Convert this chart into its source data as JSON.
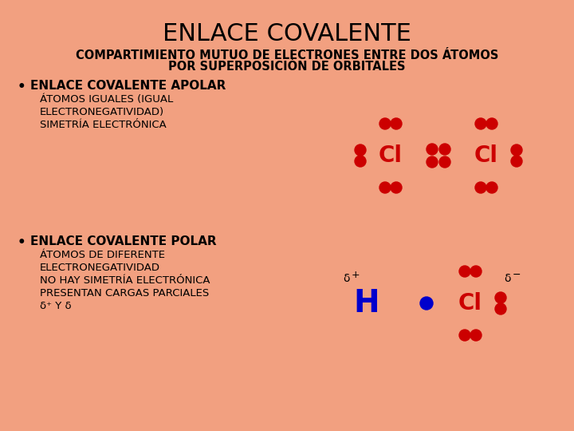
{
  "bg_color": "#F2A080",
  "title": "ENLACE COVALENTE",
  "title_fontsize": 22,
  "subtitle1": "COMPARTIMIENTO MUTUO DE ELECTRONES ENTRE DOS ÁTOMOS",
  "subtitle2": "POR SUPERPOSICIÓN DE ORBITALES",
  "subtitle_fontsize": 10.5,
  "bullet1_header": "ENLACE COVALENTE APOLAR",
  "bullet1_lines": [
    "ÁTOMOS IGUALES (IGUAL",
    "ELECTRONEGATIVIDAD)",
    "SIMETRÍA ELECTRÓNICA"
  ],
  "bullet2_header": "ENLACE COVALENTE POLAR",
  "bullet2_lines": [
    "ÁTOMOS DE DIFERENTE",
    "ELECTRONEGATIVIDAD",
    "NO HAY SIMETRÍA ELECTRÓNICA",
    "PRESENTAN CARGAS PARCIALES",
    "δ⁺ Y δ"
  ],
  "bullet_fontsize": 9.5,
  "header_fontsize": 11,
  "red": "#CC0000",
  "blue": "#0000CC",
  "black": "#000000"
}
